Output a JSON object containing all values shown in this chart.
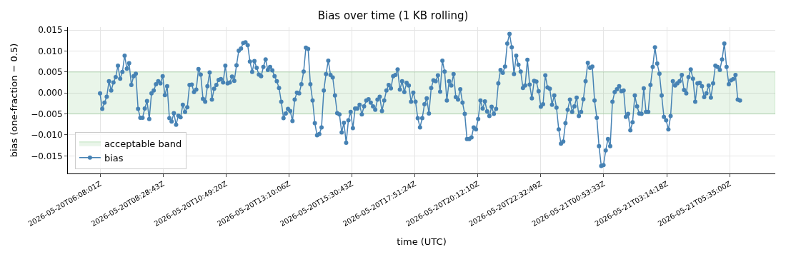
{
  "chart_data": {
    "type": "line",
    "title": "Bias over time (1 KB rolling)",
    "xlabel": "time (UTC)",
    "ylabel": "bias (one-fraction − 0.5)",
    "xlim": [
      "2026-05-20T04:56:10",
      "2026-05-21T07:16:52"
    ],
    "xticks": [
      {
        "value": "2026-05-20T06:08:01",
        "label": "2026-05-20T06:08:01Z"
      },
      {
        "value": "2026-05-20T08:28:43",
        "label": "2026-05-20T08:28:43Z"
      },
      {
        "value": "2026-05-20T10:49:20",
        "label": "2026-05-20T10:49:20Z"
      },
      {
        "value": "2026-05-20T13:10:06",
        "label": "2026-05-20T13:10:06Z"
      },
      {
        "value": "2026-05-20T15:30:43",
        "label": "2026-05-20T15:30:43Z"
      },
      {
        "value": "2026-05-20T17:51:24",
        "label": "2026-05-20T17:51:24Z"
      },
      {
        "value": "2026-05-20T20:12:10",
        "label": "2026-05-20T20:12:10Z"
      },
      {
        "value": "2026-05-20T22:32:49",
        "label": "2026-05-20T22:32:49Z"
      },
      {
        "value": "2026-05-21T00:53:33",
        "label": "2026-05-21T00:53:33Z"
      },
      {
        "value": "2026-05-21T03:14:18",
        "label": "2026-05-21T03:14:18Z"
      },
      {
        "value": "2026-05-21T05:35:00",
        "label": "2026-05-21T05:35:00Z"
      }
    ],
    "ylim": [
      -0.0192,
      0.0157
    ],
    "yticks": [
      {
        "value": -0.015,
        "label": "−0.015"
      },
      {
        "value": -0.01,
        "label": "−0.010"
      },
      {
        "value": -0.005,
        "label": "−0.005"
      },
      {
        "value": 0,
        "label": "0.000"
      },
      {
        "value": 0.005,
        "label": "0.005"
      },
      {
        "value": 0.01,
        "label": "0.010"
      },
      {
        "value": 0.015,
        "label": "0.015"
      }
    ],
    "grid": true,
    "legend": "bottom left",
    "marker": "circle",
    "line_style": "solid",
    "bands": [
      {
        "axis": "y",
        "from": -0.005,
        "to": 0.005,
        "label": "acceptable band",
        "color": "#2ca02c"
      }
    ],
    "x": [
      "2026-05-20T06:08",
      "2026-05-20T06:13",
      "2026-05-20T06:18",
      "2026-05-20T06:23",
      "2026-05-20T06:28",
      "2026-05-20T06:33",
      "2026-05-20T06:38",
      "2026-05-20T06:43",
      "2026-05-20T06:48",
      "2026-05-20T06:53",
      "2026-05-20T06:58",
      "2026-05-20T07:03",
      "2026-05-20T07:08",
      "2026-05-20T07:13",
      "2026-05-20T07:18",
      "2026-05-20T07:23",
      "2026-05-20T07:28",
      "2026-05-20T07:33",
      "2026-05-20T07:38",
      "2026-05-20T07:43",
      "2026-05-20T07:48",
      "2026-05-20T07:53",
      "2026-05-20T07:58",
      "2026-05-20T08:03",
      "2026-05-20T08:08",
      "2026-05-20T08:13",
      "2026-05-20T08:18",
      "2026-05-20T08:23",
      "2026-05-20T08:28",
      "2026-05-20T08:33",
      "2026-05-20T08:38",
      "2026-05-20T08:43",
      "2026-05-20T08:48",
      "2026-05-20T08:53",
      "2026-05-20T08:58",
      "2026-05-20T09:03",
      "2026-05-20T09:08",
      "2026-05-20T09:13",
      "2026-05-20T09:18",
      "2026-05-20T09:23",
      "2026-05-20T09:28",
      "2026-05-20T09:33",
      "2026-05-20T09:38",
      "2026-05-20T09:43",
      "2026-05-20T09:48",
      "2026-05-20T09:53",
      "2026-05-20T09:58",
      "2026-05-20T10:03",
      "2026-05-20T10:08",
      "2026-05-20T10:13",
      "2026-05-20T10:18",
      "2026-05-20T10:23",
      "2026-05-20T10:28",
      "2026-05-20T10:33",
      "2026-05-20T10:38",
      "2026-05-20T10:43",
      "2026-05-20T10:48",
      "2026-05-20T10:53",
      "2026-05-20T10:58",
      "2026-05-20T11:03",
      "2026-05-20T11:08",
      "2026-05-20T11:13",
      "2026-05-20T11:18",
      "2026-05-20T11:23",
      "2026-05-20T11:28",
      "2026-05-20T11:33",
      "2026-05-20T11:38",
      "2026-05-20T11:43",
      "2026-05-20T11:48",
      "2026-05-20T11:53",
      "2026-05-20T11:58",
      "2026-05-20T12:03",
      "2026-05-20T12:08",
      "2026-05-20T12:13",
      "2026-05-20T12:18",
      "2026-05-20T12:23",
      "2026-05-20T12:28",
      "2026-05-20T12:33",
      "2026-05-20T12:38",
      "2026-05-20T12:43",
      "2026-05-20T12:48",
      "2026-05-20T12:53",
      "2026-05-20T12:58",
      "2026-05-20T13:03",
      "2026-05-20T13:08",
      "2026-05-20T13:13",
      "2026-05-20T13:18",
      "2026-05-20T13:23",
      "2026-05-20T13:28",
      "2026-05-20T13:33",
      "2026-05-20T13:38",
      "2026-05-20T13:43",
      "2026-05-20T13:48",
      "2026-05-20T13:53",
      "2026-05-20T13:58",
      "2026-05-20T14:03",
      "2026-05-20T14:08",
      "2026-05-20T14:13",
      "2026-05-20T14:18",
      "2026-05-20T14:23",
      "2026-05-20T14:28",
      "2026-05-20T14:33",
      "2026-05-20T14:38",
      "2026-05-20T14:43",
      "2026-05-20T14:48",
      "2026-05-20T14:53",
      "2026-05-20T14:58",
      "2026-05-20T15:03",
      "2026-05-20T15:08",
      "2026-05-20T15:13",
      "2026-05-20T15:18",
      "2026-05-20T15:23",
      "2026-05-20T15:28",
      "2026-05-20T15:33",
      "2026-05-20T15:38",
      "2026-05-20T15:43",
      "2026-05-20T15:48",
      "2026-05-20T15:53",
      "2026-05-20T15:58",
      "2026-05-20T16:03",
      "2026-05-20T16:08",
      "2026-05-20T16:13",
      "2026-05-20T16:18",
      "2026-05-20T16:23",
      "2026-05-20T16:28",
      "2026-05-20T16:33",
      "2026-05-20T16:38",
      "2026-05-20T16:43",
      "2026-05-20T16:48",
      "2026-05-20T16:53",
      "2026-05-20T16:58",
      "2026-05-20T17:03",
      "2026-05-20T17:08",
      "2026-05-20T17:13",
      "2026-05-20T17:18",
      "2026-05-20T17:23",
      "2026-05-20T17:28",
      "2026-05-20T17:33",
      "2026-05-20T17:38",
      "2026-05-20T17:43",
      "2026-05-20T17:48",
      "2026-05-20T17:53",
      "2026-05-20T17:58",
      "2026-05-20T18:03",
      "2026-05-20T18:08",
      "2026-05-20T18:13",
      "2026-05-20T18:18",
      "2026-05-20T18:23",
      "2026-05-20T18:28",
      "2026-05-20T18:33",
      "2026-05-20T18:38",
      "2026-05-20T18:43",
      "2026-05-20T18:48",
      "2026-05-20T18:53",
      "2026-05-20T18:58",
      "2026-05-20T19:03",
      "2026-05-20T19:08",
      "2026-05-20T19:13",
      "2026-05-20T19:18",
      "2026-05-20T19:23",
      "2026-05-20T19:28",
      "2026-05-20T19:33",
      "2026-05-20T19:38",
      "2026-05-20T19:43",
      "2026-05-20T19:48",
      "2026-05-20T19:53",
      "2026-05-20T19:58",
      "2026-05-20T20:03",
      "2026-05-20T20:08",
      "2026-05-20T20:13",
      "2026-05-20T20:18",
      "2026-05-20T20:23",
      "2026-05-20T20:28",
      "2026-05-20T20:33",
      "2026-05-20T20:38",
      "2026-05-20T20:43",
      "2026-05-20T20:48",
      "2026-05-20T20:53",
      "2026-05-20T20:58",
      "2026-05-20T21:03",
      "2026-05-20T21:08",
      "2026-05-20T21:13",
      "2026-05-20T21:18",
      "2026-05-20T21:23",
      "2026-05-20T21:28",
      "2026-05-20T21:33",
      "2026-05-20T21:38",
      "2026-05-20T21:43",
      "2026-05-20T21:48",
      "2026-05-20T21:53",
      "2026-05-20T21:58",
      "2026-05-20T22:03",
      "2026-05-20T22:08",
      "2026-05-20T22:13",
      "2026-05-20T22:18",
      "2026-05-20T22:23",
      "2026-05-20T22:28",
      "2026-05-20T22:33",
      "2026-05-20T22:38",
      "2026-05-20T22:43",
      "2026-05-20T22:48",
      "2026-05-20T22:53",
      "2026-05-20T22:58",
      "2026-05-20T23:03",
      "2026-05-20T23:08",
      "2026-05-20T23:13",
      "2026-05-20T23:18",
      "2026-05-20T23:23",
      "2026-05-20T23:28",
      "2026-05-20T23:33",
      "2026-05-20T23:38",
      "2026-05-20T23:43",
      "2026-05-20T23:48",
      "2026-05-20T23:53",
      "2026-05-20T23:58",
      "2026-05-21T00:03",
      "2026-05-21T00:08",
      "2026-05-21T00:13",
      "2026-05-21T00:18",
      "2026-05-21T00:23",
      "2026-05-21T00:28",
      "2026-05-21T00:33",
      "2026-05-21T00:38",
      "2026-05-21T00:43",
      "2026-05-21T00:48",
      "2026-05-21T00:53",
      "2026-05-21T00:58",
      "2026-05-21T01:03",
      "2026-05-21T01:08",
      "2026-05-21T01:13",
      "2026-05-21T01:18",
      "2026-05-21T01:23",
      "2026-05-21T01:28",
      "2026-05-21T01:33",
      "2026-05-21T01:38",
      "2026-05-21T01:43",
      "2026-05-21T01:48",
      "2026-05-21T01:53",
      "2026-05-21T01:58",
      "2026-05-21T02:03",
      "2026-05-21T02:08",
      "2026-05-21T02:13",
      "2026-05-21T02:18",
      "2026-05-21T02:23",
      "2026-05-21T02:28",
      "2026-05-21T02:33",
      "2026-05-21T02:38",
      "2026-05-21T02:43",
      "2026-05-21T02:48",
      "2026-05-21T02:53",
      "2026-05-21T02:58",
      "2026-05-21T03:03",
      "2026-05-21T03:08",
      "2026-05-21T03:13",
      "2026-05-21T03:18",
      "2026-05-21T03:23",
      "2026-05-21T03:28",
      "2026-05-21T03:33",
      "2026-05-21T03:38",
      "2026-05-21T03:43",
      "2026-05-21T03:48",
      "2026-05-21T03:53",
      "2026-05-21T03:58",
      "2026-05-21T04:03",
      "2026-05-21T04:08",
      "2026-05-21T04:13",
      "2026-05-21T04:18",
      "2026-05-21T04:23",
      "2026-05-21T04:28",
      "2026-05-21T04:33",
      "2026-05-21T04:38",
      "2026-05-21T04:43",
      "2026-05-21T04:48",
      "2026-05-21T04:53",
      "2026-05-21T04:58",
      "2026-05-21T05:03",
      "2026-05-21T05:08",
      "2026-05-21T05:13",
      "2026-05-21T05:18",
      "2026-05-21T05:23",
      "2026-05-21T05:28",
      "2026-05-21T05:33",
      "2026-05-21T05:38",
      "2026-05-21T05:43",
      "2026-05-21T05:48",
      "2026-05-21T05:53",
      "2026-05-21T05:58"
    ],
    "series": [
      {
        "name": "bias",
        "color": "#4682b4",
        "values": [
          -0.0001,
          -0.0038,
          -0.0023,
          -0.0009,
          0.0028,
          0.0006,
          0.0025,
          0.0038,
          0.0065,
          0.0034,
          0.005,
          0.0089,
          0.0058,
          0.0071,
          0.0019,
          0.004,
          0.0046,
          -0.0038,
          -0.0059,
          -0.0059,
          -0.0037,
          -0.0019,
          -0.0062,
          -0.0001,
          0.0006,
          0.0021,
          0.0028,
          0.0023,
          0.004,
          -0.0005,
          0.0016,
          -0.006,
          -0.0068,
          -0.0048,
          -0.0076,
          -0.0054,
          -0.0058,
          -0.0028,
          -0.0045,
          -0.0034,
          0.0019,
          0.002,
          0.0002,
          0.0008,
          0.0057,
          0.0044,
          -0.0014,
          -0.0021,
          0.0016,
          0.0049,
          -0.0016,
          0.001,
          0.0019,
          0.0031,
          0.0033,
          0.0025,
          0.0065,
          0.0023,
          0.0025,
          0.0039,
          0.0029,
          0.0066,
          0.0101,
          0.0106,
          0.0119,
          0.0121,
          0.0114,
          0.0075,
          0.005,
          0.0076,
          0.006,
          0.0044,
          0.004,
          0.0062,
          0.008,
          0.0055,
          0.0062,
          0.0054,
          0.004,
          0.0028,
          0.0012,
          -0.0021,
          -0.006,
          -0.0049,
          -0.0038,
          -0.0043,
          -0.0067,
          -0.0016,
          0.0001,
          -0.0001,
          0.0021,
          0.0051,
          0.0108,
          0.0105,
          0.0021,
          -0.0018,
          -0.0072,
          -0.0101,
          -0.0098,
          -0.0082,
          0.0006,
          0.0045,
          0.0077,
          0.0043,
          0.0037,
          -0.0006,
          -0.0048,
          -0.0051,
          -0.0094,
          -0.0071,
          -0.0119,
          -0.0065,
          -0.0045,
          -0.0084,
          -0.0037,
          -0.0037,
          -0.0028,
          -0.0051,
          -0.0032,
          -0.0018,
          -0.0015,
          -0.0023,
          -0.0032,
          -0.004,
          -0.0016,
          -0.0009,
          -0.0043,
          -0.0018,
          0.0006,
          0.0019,
          0.0011,
          0.004,
          0.0043,
          0.0056,
          0.0008,
          0.0028,
          0.0002,
          0.0024,
          0.0018,
          -0.0021,
          0.0001,
          -0.0021,
          -0.006,
          -0.0082,
          -0.006,
          -0.0027,
          -0.0013,
          -0.0049,
          0.0012,
          0.003,
          0.0028,
          0.0042,
          0.0003,
          0.0077,
          0.0051,
          -0.0018,
          0.0028,
          0.0018,
          0.0045,
          -0.001,
          -0.0016,
          0.0009,
          -0.0023,
          -0.005,
          -0.011,
          -0.011,
          -0.0106,
          -0.0082,
          -0.0087,
          -0.0062,
          -0.0018,
          -0.0037,
          -0.002,
          -0.0044,
          -0.0055,
          -0.0033,
          -0.005,
          -0.0038,
          0.0023,
          0.0055,
          0.0048,
          0.0063,
          0.0118,
          0.0141,
          0.0109,
          0.0045,
          0.0089,
          0.0067,
          0.0051,
          0.0012,
          0.0018,
          0.0079,
          0.002,
          -0.0013,
          0.0029,
          0.0027,
          0.0004,
          -0.0033,
          -0.0027,
          0.0042,
          0.0013,
          0.001,
          -0.0028,
          -0.0006,
          -0.0035,
          -0.0087,
          -0.0121,
          -0.0116,
          -0.0072,
          -0.004,
          -0.0016,
          -0.0045,
          -0.0032,
          -0.0011,
          -0.0055,
          -0.0045,
          -0.0015,
          0.0028,
          0.0072,
          0.006,
          0.0063,
          -0.0018,
          -0.0059,
          -0.0127,
          -0.0174,
          -0.0172,
          -0.0137,
          -0.011,
          -0.0127,
          -0.0021,
          0.0002,
          0.0009,
          0.0016,
          0.0004,
          0.0006,
          -0.0057,
          -0.005,
          -0.0089,
          -0.007,
          -0.0006,
          -0.0032,
          -0.0049,
          -0.005,
          0.0011,
          -0.0045,
          -0.0045,
          0.0019,
          0.0062,
          0.0109,
          0.007,
          0.0046,
          -0.0006,
          -0.0057,
          -0.0065,
          -0.0087,
          -0.0055,
          0.0028,
          0.0018,
          0.0023,
          0.0028,
          0.0043,
          0.0007,
          -0.0001,
          0.0038,
          0.0056,
          0.0034,
          -0.0021,
          0.0023,
          0.0024,
          0.0016,
          -0.001,
          -0.0001,
          0.0018,
          -0.0011,
          0.0023,
          0.0065,
          0.0062,
          0.0055,
          0.008,
          0.0118,
          0.0062,
          0.0021,
          0.003,
          0.0033,
          0.0043,
          -0.0016,
          -0.0018
        ]
      }
    ]
  }
}
